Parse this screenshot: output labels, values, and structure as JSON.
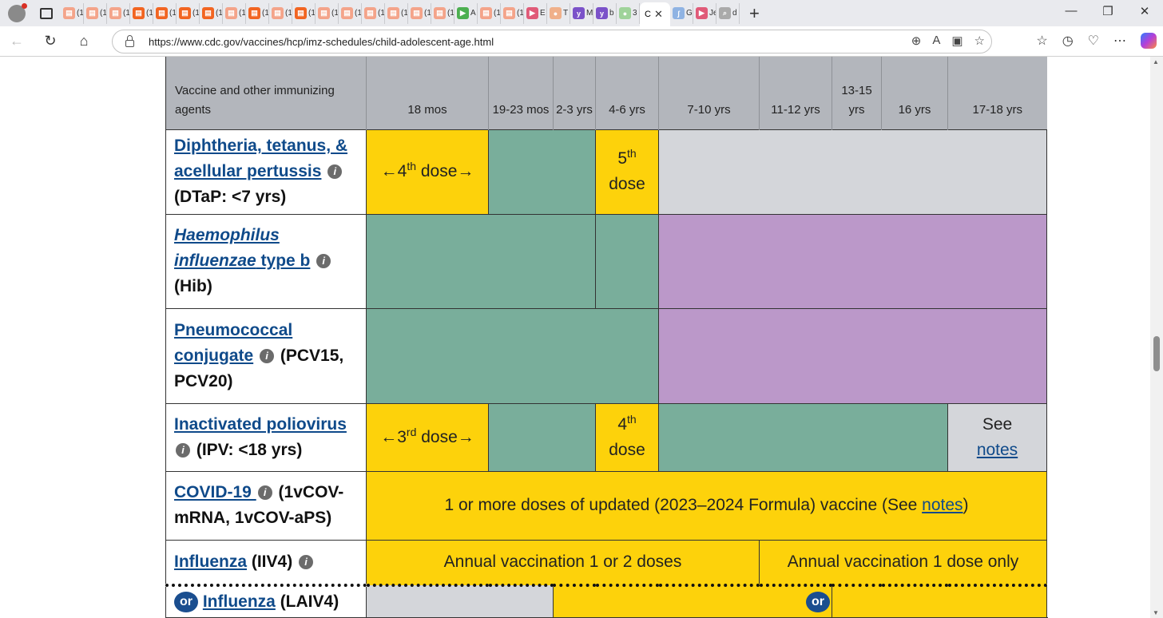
{
  "browser": {
    "tabs": [
      {
        "label": "(1",
        "color": "#f4a48a",
        "glyph": "▤"
      },
      {
        "label": "(1",
        "color": "#f4a48a",
        "glyph": "▤"
      },
      {
        "label": "(1",
        "color": "#f4a48a",
        "glyph": "▤"
      },
      {
        "label": "(1",
        "color": "#f26522",
        "glyph": "▤"
      },
      {
        "label": "(1",
        "color": "#f26522",
        "glyph": "▤"
      },
      {
        "label": "(1",
        "color": "#f26522",
        "glyph": "▤"
      },
      {
        "label": "(1",
        "color": "#f26522",
        "glyph": "▤"
      },
      {
        "label": "(1",
        "color": "#f4a48a",
        "glyph": "▤"
      },
      {
        "label": "(1",
        "color": "#f26522",
        "glyph": "▤"
      },
      {
        "label": "(1",
        "color": "#f4a48a",
        "glyph": "▤"
      },
      {
        "label": "(1",
        "color": "#f26522",
        "glyph": "▤"
      },
      {
        "label": "(1",
        "color": "#f4a48a",
        "glyph": "▤"
      },
      {
        "label": "(1",
        "color": "#f4a48a",
        "glyph": "▤"
      },
      {
        "label": "(1",
        "color": "#f4a48a",
        "glyph": "▤"
      },
      {
        "label": "(1",
        "color": "#f4a48a",
        "glyph": "▤"
      },
      {
        "label": "(1",
        "color": "#f4a48a",
        "glyph": "▤"
      },
      {
        "label": "(1",
        "color": "#f4a48a",
        "glyph": "▤"
      },
      {
        "label": "A",
        "color": "#4caf50",
        "glyph": "▶"
      },
      {
        "label": "(1",
        "color": "#f4a48a",
        "glyph": "▤"
      },
      {
        "label": "(1",
        "color": "#f4a48a",
        "glyph": "▤"
      },
      {
        "label": "E",
        "color": "#e05a78",
        "glyph": "▶"
      },
      {
        "label": "T",
        "color": "#f0b08a",
        "glyph": "●"
      },
      {
        "label": "M",
        "color": "#7b52c9",
        "glyph": "y"
      },
      {
        "label": "b",
        "color": "#7b52c9",
        "glyph": "y"
      },
      {
        "label": "3",
        "color": "#9fd39a",
        "glyph": "●"
      }
    ],
    "active_tab_label": "C",
    "trailing_tabs": [
      {
        "label": "G",
        "color": "#8fb3e3",
        "glyph": "ʃ"
      },
      {
        "label": "Je",
        "color": "#e05a78",
        "glyph": "▶"
      },
      {
        "label": "d",
        "color": "#aaaaaa",
        "glyph": "⌕"
      }
    ],
    "url": "https://www.cdc.gov/vaccines/hcp/imz-schedules/child-adolescent-age.html"
  },
  "table": {
    "header": {
      "agent": "Vaccine and other immunizing agents",
      "ages": [
        "18 mos",
        "19-23 mos",
        "2-3 yrs",
        "4-6 yrs",
        "7-10 yrs",
        "11-12 yrs",
        "13-15 yrs",
        "16 yrs",
        "17-18 yrs"
      ]
    },
    "rows": {
      "dtap": {
        "link": "Diphtheria, tetanus, & acellular pertussis",
        "rest": "(DTaP: <7 yrs)",
        "dose18": "←4",
        "dose18_sup": "th",
        "dose18_tail": " dose→",
        "dose46": "5",
        "dose46_sup": "th",
        "dose46_tail": "dose"
      },
      "hib": {
        "link_italic": "Haemophilus influenzae",
        "link_rest": " type b",
        "rest": "(Hib)"
      },
      "pcv": {
        "link": "Pneumococcal conjugate",
        "rest": "(PCV15, PCV20)"
      },
      "ipv": {
        "link": "Inactivated poliovirus",
        "rest": "(IPV: <18 yrs)",
        "dose18": "←3",
        "dose18_sup": "rd",
        "dose18_tail": " dose→",
        "dose46": "4",
        "dose46_sup": "th",
        "dose46_tail": "dose",
        "see": "See",
        "notes": "notes"
      },
      "covid": {
        "link": "COVID-19 ",
        "rest": "(1vCOV-mRNA, 1vCOV-aPS)",
        "text": "1 or more doses of updated (2023–2024 Formula) vaccine (See ",
        "notes": "notes",
        "close": ")"
      },
      "flu": {
        "link": "Influenza",
        "rest": " (IIV4)",
        "text1": "Annual vaccination 1 or 2 doses",
        "text2": "Annual vaccination 1 dose only"
      },
      "laiv": {
        "or": "or",
        "link": "Influenza",
        "rest": " (LAIV4)"
      }
    }
  },
  "colors": {
    "yellow": "#fdd20b",
    "green": "#79ae9b",
    "purple": "#bb98c9",
    "grey": "#d4d6da",
    "header": "#b3b6bc",
    "link": "#0f4a8a"
  }
}
